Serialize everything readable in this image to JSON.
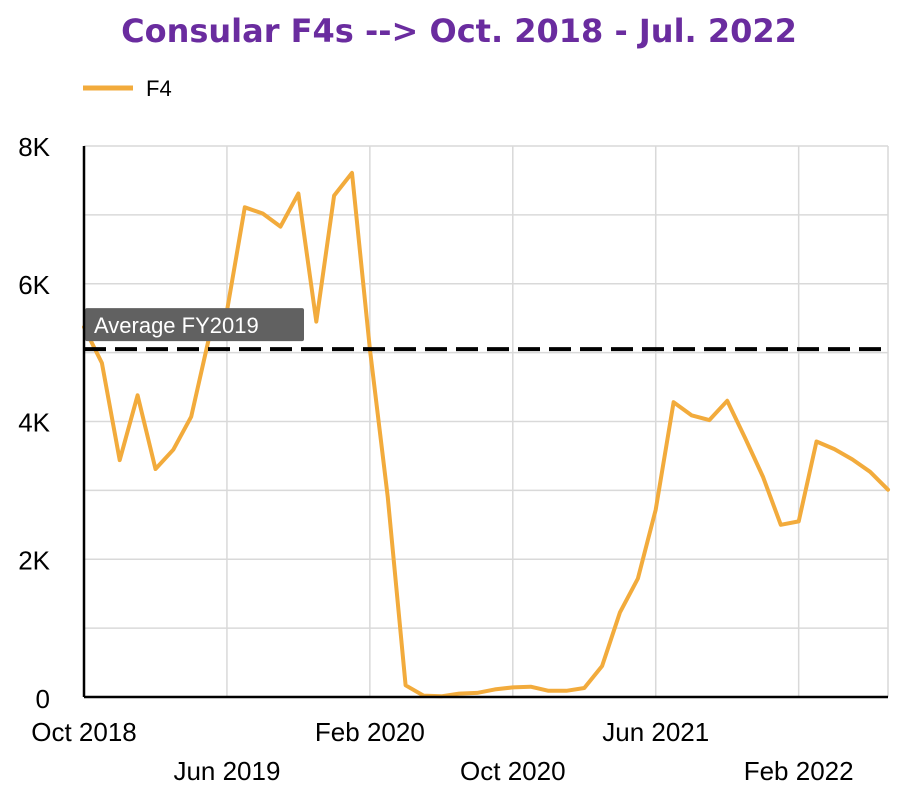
{
  "title": "Consular F4s --> Oct. 2018 - Jul. 2022",
  "colors": {
    "title": "#6a2c9f",
    "series": "#f2ab3c",
    "grid": "#d9d9d9",
    "axis": "#000000",
    "reference_line": "#000000",
    "annotation_bg": "#616161"
  },
  "chart_data": {
    "type": "line",
    "title": "Consular F4s --> Oct. 2018 - Jul. 2022",
    "xlabel": "",
    "ylabel": "",
    "x_start": "Oct 2018",
    "x_end": "Jul 2022",
    "x_ticks": [
      "Oct 2018",
      "Jun 2019",
      "Feb 2020",
      "Oct 2020",
      "Jun 2021",
      "Feb 2022"
    ],
    "y_ticks": [
      "0",
      "2K",
      "4K",
      "6K",
      "8K"
    ],
    "ylim": [
      0,
      8000
    ],
    "grid": true,
    "legend_position": "top-left",
    "series": [
      {
        "name": "F4",
        "x": [
          "Oct 2018",
          "Nov 2018",
          "Dec 2018",
          "Jan 2019",
          "Feb 2019",
          "Mar 2019",
          "Apr 2019",
          "May 2019",
          "Jun 2019",
          "Jul 2019",
          "Aug 2019",
          "Sep 2019",
          "Oct 2019",
          "Nov 2019",
          "Dec 2019",
          "Jan 2020",
          "Feb 2020",
          "Mar 2020",
          "Apr 2020",
          "May 2020",
          "Jun 2020",
          "Jul 2020",
          "Aug 2020",
          "Sep 2020",
          "Oct 2020",
          "Nov 2020",
          "Dec 2020",
          "Jan 2021",
          "Feb 2021",
          "Mar 2021",
          "Apr 2021",
          "May 2021",
          "Jun 2021",
          "Jul 2021",
          "Aug 2021",
          "Sep 2021",
          "Oct 2021",
          "Nov 2021",
          "Dec 2021",
          "Jan 2022",
          "Feb 2022",
          "Mar 2022",
          "Apr 2022",
          "May 2022",
          "Jun 2022",
          "Jul 2022"
        ],
        "values": [
          5370,
          4850,
          3440,
          4380,
          3310,
          3590,
          4070,
          5220,
          5600,
          7110,
          7020,
          6830,
          7310,
          5450,
          7280,
          7610,
          5050,
          2910,
          170,
          20,
          10,
          50,
          60,
          110,
          140,
          150,
          90,
          90,
          130,
          450,
          1230,
          1720,
          2720,
          4280,
          4090,
          4020,
          4300,
          3760,
          3200,
          2500,
          2550,
          3710,
          3600,
          3450,
          3270,
          3010
        ]
      }
    ],
    "annotations": [
      {
        "label": "Average FY2019",
        "y": 5050,
        "style": "dashed"
      }
    ]
  }
}
